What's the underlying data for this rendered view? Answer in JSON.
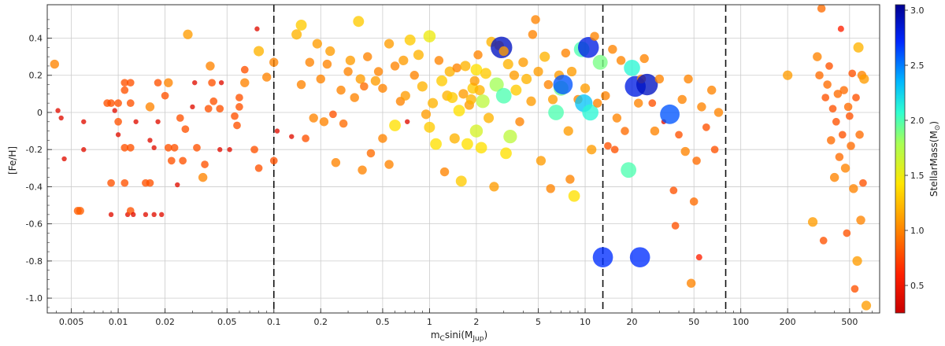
{
  "chart_data": {
    "type": "scatter",
    "title": "",
    "xlabel": "m_C sini(M_Jup)",
    "xlabel_main": "m",
    "xlabel_sub": "C",
    "xlabel_mid": "sini(M",
    "xlabel_sub2": "Jup",
    "xlabel_end": ")",
    "ylabel": "[Fe/H]",
    "xscale": "log",
    "xlim": [
      0.0035,
      780
    ],
    "ylim": [
      -1.08,
      0.58
    ],
    "grid": true,
    "x_ticks": [
      {
        "v": 0.005,
        "t": "0.005"
      },
      {
        "v": 0.01,
        "t": "0.01"
      },
      {
        "v": 0.02,
        "t": "0.02"
      },
      {
        "v": 0.05,
        "t": "0.05"
      },
      {
        "v": 0.1,
        "t": "0.1"
      },
      {
        "v": 0.2,
        "t": "0.2"
      },
      {
        "v": 0.5,
        "t": "0.5"
      },
      {
        "v": 1,
        "t": "1"
      },
      {
        "v": 2,
        "t": "2"
      },
      {
        "v": 5,
        "t": "5"
      },
      {
        "v": 10,
        "t": "10"
      },
      {
        "v": 20,
        "t": "20"
      },
      {
        "v": 50,
        "t": "50"
      },
      {
        "v": 100,
        "t": "100"
      },
      {
        "v": 200,
        "t": "200"
      },
      {
        "v": 500,
        "t": "500"
      }
    ],
    "y_ticks": [
      {
        "v": 0.4,
        "t": "0.4"
      },
      {
        "v": 0.2,
        "t": "0.2"
      },
      {
        "v": 0,
        "t": "0"
      },
      {
        "v": -0.2,
        "t": "-0.2"
      },
      {
        "v": -0.4,
        "t": "-0.4"
      },
      {
        "v": -0.6,
        "t": "-0.6"
      },
      {
        "v": -0.8,
        "t": "-0.8"
      },
      {
        "v": -1.0,
        "t": "-1.0"
      }
    ],
    "vlines": [
      0.1,
      13,
      80
    ],
    "colorbar": {
      "label": "StellarMass(M",
      "label_sym": "⊙",
      "label_end": ")",
      "range": [
        0.25,
        3.05
      ],
      "colormap": "jet",
      "ticks": [
        {
          "v": 0.5,
          "t": "0.5"
        },
        {
          "v": 1.0,
          "t": "1.0"
        },
        {
          "v": 1.5,
          "t": "1.5"
        },
        {
          "v": 2.0,
          "t": "2.0"
        },
        {
          "v": 2.5,
          "t": "2.5"
        },
        {
          "v": 3.0,
          "t": "3.0"
        }
      ]
    },
    "points_note": "each point: [x (M_Jup), [Fe/H], stellar mass (M_sun)]; marker size grows with stellar mass",
    "points": [
      [
        0.0039,
        0.26,
        1.0
      ],
      [
        0.0041,
        0.01,
        0.4
      ],
      [
        0.0043,
        -0.03,
        0.4
      ],
      [
        0.0045,
        -0.25,
        0.4
      ],
      [
        0.0055,
        -0.53,
        0.85
      ],
      [
        0.0057,
        -0.53,
        0.85
      ],
      [
        0.006,
        -0.05,
        0.4
      ],
      [
        0.006,
        -0.2,
        0.4
      ],
      [
        0.0085,
        0.05,
        0.8
      ],
      [
        0.009,
        0.05,
        0.8
      ],
      [
        0.009,
        -0.38,
        0.8
      ],
      [
        0.009,
        -0.55,
        0.4
      ],
      [
        0.0095,
        0.01,
        0.4
      ],
      [
        0.01,
        0.05,
        0.8
      ],
      [
        0.01,
        -0.05,
        0.8
      ],
      [
        0.01,
        -0.12,
        0.4
      ],
      [
        0.011,
        0.16,
        0.8
      ],
      [
        0.011,
        0.12,
        0.8
      ],
      [
        0.011,
        -0.19,
        0.8
      ],
      [
        0.011,
        -0.38,
        0.8
      ],
      [
        0.0115,
        -0.55,
        0.4
      ],
      [
        0.012,
        0.16,
        0.8
      ],
      [
        0.012,
        0.05,
        0.8
      ],
      [
        0.012,
        -0.19,
        0.8
      ],
      [
        0.012,
        -0.53,
        0.8
      ],
      [
        0.0125,
        -0.55,
        0.4
      ],
      [
        0.013,
        -0.05,
        0.4
      ],
      [
        0.015,
        -0.55,
        0.4
      ],
      [
        0.015,
        -0.38,
        0.8
      ],
      [
        0.016,
        0.03,
        1.0
      ],
      [
        0.016,
        -0.15,
        0.4
      ],
      [
        0.017,
        -0.19,
        0.4
      ],
      [
        0.017,
        -0.55,
        0.4
      ],
      [
        0.016,
        -0.38,
        0.8
      ],
      [
        0.018,
        0.16,
        0.8
      ],
      [
        0.018,
        -0.05,
        0.4
      ],
      [
        0.019,
        -0.55,
        0.4
      ],
      [
        0.02,
        0.09,
        0.8
      ],
      [
        0.021,
        0.16,
        1.0
      ],
      [
        0.021,
        -0.19,
        0.8
      ],
      [
        0.022,
        -0.26,
        0.8
      ],
      [
        0.023,
        -0.19,
        0.8
      ],
      [
        0.024,
        -0.39,
        0.4
      ],
      [
        0.025,
        -0.03,
        0.8
      ],
      [
        0.026,
        -0.26,
        0.8
      ],
      [
        0.027,
        -0.09,
        0.8
      ],
      [
        0.028,
        0.42,
        1.1
      ],
      [
        0.03,
        0.03,
        0.4
      ],
      [
        0.031,
        0.16,
        0.4
      ],
      [
        0.032,
        -0.19,
        0.8
      ],
      [
        0.035,
        -0.35,
        1.0
      ],
      [
        0.036,
        -0.28,
        0.8
      ],
      [
        0.038,
        0.02,
        0.8
      ],
      [
        0.039,
        0.25,
        1.0
      ],
      [
        0.04,
        0.16,
        0.8
      ],
      [
        0.041,
        0.06,
        0.8
      ],
      [
        0.045,
        0.02,
        0.8
      ],
      [
        0.045,
        -0.2,
        0.4
      ],
      [
        0.046,
        0.16,
        0.4
      ],
      [
        0.052,
        -0.2,
        0.4
      ],
      [
        0.056,
        -0.02,
        0.8
      ],
      [
        0.058,
        -0.07,
        0.8
      ],
      [
        0.06,
        0.03,
        0.8
      ],
      [
        0.06,
        0.08,
        0.8
      ],
      [
        0.065,
        0.23,
        0.8
      ],
      [
        0.065,
        0.16,
        1.0
      ],
      [
        0.075,
        -0.2,
        0.8
      ],
      [
        0.078,
        0.45,
        0.4
      ],
      [
        0.08,
        0.33,
        1.2
      ],
      [
        0.08,
        -0.3,
        0.8
      ],
      [
        0.09,
        0.19,
        1.0
      ],
      [
        0.1,
        0.27,
        1.0
      ],
      [
        0.1,
        -0.26,
        0.8
      ],
      [
        0.105,
        -0.1,
        0.4
      ],
      [
        0.13,
        -0.13,
        0.4
      ],
      [
        0.14,
        0.42,
        1.2
      ],
      [
        0.15,
        0.47,
        1.3
      ],
      [
        0.15,
        0.15,
        1.0
      ],
      [
        0.16,
        -0.14,
        0.8
      ],
      [
        0.17,
        0.27,
        1.0
      ],
      [
        0.18,
        -0.03,
        1.0
      ],
      [
        0.19,
        0.37,
        1.1
      ],
      [
        0.2,
        0.18,
        1.0
      ],
      [
        0.21,
        -0.05,
        1.0
      ],
      [
        0.22,
        0.26,
        1.0
      ],
      [
        0.23,
        0.33,
        1.1
      ],
      [
        0.24,
        -0.01,
        0.8
      ],
      [
        0.25,
        -0.27,
        1.0
      ],
      [
        0.27,
        0.12,
        1.0
      ],
      [
        0.28,
        -0.06,
        0.9
      ],
      [
        0.3,
        0.22,
        1.0
      ],
      [
        0.31,
        0.28,
        1.1
      ],
      [
        0.33,
        0.08,
        1.0
      ],
      [
        0.35,
        0.49,
        1.3
      ],
      [
        0.36,
        0.18,
        1.1
      ],
      [
        0.37,
        -0.31,
        1.0
      ],
      [
        0.38,
        0.14,
        0.9
      ],
      [
        0.4,
        0.3,
        1.0
      ],
      [
        0.42,
        -0.22,
        0.9
      ],
      [
        0.45,
        0.17,
        1.1
      ],
      [
        0.47,
        0.22,
        1.0
      ],
      [
        0.5,
        0.13,
        1.0
      ],
      [
        0.5,
        -0.14,
        1.0
      ],
      [
        0.55,
        0.37,
        1.1
      ],
      [
        0.55,
        -0.28,
        1.0
      ],
      [
        0.6,
        0.25,
        1.0
      ],
      [
        0.6,
        -0.07,
        1.4
      ],
      [
        0.65,
        0.06,
        1.0
      ],
      [
        0.68,
        0.28,
        1.1
      ],
      [
        0.7,
        0.09,
        1.1
      ],
      [
        0.72,
        -0.05,
        0.4
      ],
      [
        0.75,
        0.39,
        1.3
      ],
      [
        0.8,
        0.2,
        1.0
      ],
      [
        0.85,
        0.31,
        1.2
      ],
      [
        0.9,
        0.14,
        1.2
      ],
      [
        0.95,
        -0.01,
        1.1
      ],
      [
        1.0,
        -0.08,
        1.3
      ],
      [
        1.0,
        0.41,
        1.5
      ],
      [
        1.05,
        0.05,
        1.2
      ],
      [
        1.1,
        -0.17,
        1.4
      ],
      [
        1.15,
        0.28,
        1.0
      ],
      [
        1.2,
        0.17,
        1.3
      ],
      [
        1.25,
        -0.32,
        1.0
      ],
      [
        1.3,
        0.09,
        1.2
      ],
      [
        1.35,
        0.22,
        1.2
      ],
      [
        1.4,
        0.08,
        1.3
      ],
      [
        1.45,
        -0.14,
        1.2
      ],
      [
        1.5,
        0.24,
        1.0
      ],
      [
        1.55,
        0.01,
        1.4
      ],
      [
        1.6,
        -0.37,
        1.3
      ],
      [
        1.65,
        0.1,
        1.1
      ],
      [
        1.7,
        0.25,
        1.2
      ],
      [
        1.75,
        -0.17,
        1.4
      ],
      [
        1.8,
        0.04,
        1.1
      ],
      [
        1.85,
        0.07,
        1.2
      ],
      [
        1.9,
        0.13,
        1.3
      ],
      [
        1.95,
        0.17,
        1.1
      ],
      [
        2.0,
        0.23,
        1.4
      ],
      [
        2.0,
        -0.1,
        1.6
      ],
      [
        2.05,
        0.31,
        1.0
      ],
      [
        2.1,
        0.12,
        1.2
      ],
      [
        2.15,
        -0.19,
        1.4
      ],
      [
        2.2,
        0.06,
        1.7
      ],
      [
        2.3,
        0.21,
        1.3
      ],
      [
        2.4,
        -0.03,
        1.2
      ],
      [
        2.5,
        0.38,
        1.2
      ],
      [
        2.6,
        -0.4,
        1.1
      ],
      [
        2.7,
        0.15,
        1.8
      ],
      [
        2.8,
        0.36,
        1.1
      ],
      [
        2.9,
        0.35,
        2.9
      ],
      [
        3.0,
        0.33,
        1.1
      ],
      [
        3.0,
        0.09,
        2.0
      ],
      [
        3.1,
        -0.22,
        1.4
      ],
      [
        3.2,
        0.26,
        1.2
      ],
      [
        3.3,
        -0.13,
        1.7
      ],
      [
        3.5,
        0.2,
        1.1
      ],
      [
        3.6,
        0.12,
        1.3
      ],
      [
        3.8,
        -0.05,
        1.0
      ],
      [
        4.0,
        0.27,
        1.1
      ],
      [
        4.2,
        0.18,
        1.2
      ],
      [
        4.5,
        0.06,
        1.1
      ],
      [
        4.6,
        0.42,
        1.0
      ],
      [
        4.8,
        0.5,
        1.0
      ],
      [
        5.0,
        0.22,
        1.1
      ],
      [
        5.2,
        -0.26,
        1.1
      ],
      [
        5.5,
        0.3,
        1.2
      ],
      [
        5.8,
        0.15,
        1.0
      ],
      [
        6.0,
        -0.41,
        1.0
      ],
      [
        6.2,
        0.07,
        1.1
      ],
      [
        6.5,
        0.0,
        2.0
      ],
      [
        6.8,
        0.2,
        1.1
      ],
      [
        7.0,
        0.13,
        1.9
      ],
      [
        7.2,
        0.15,
        2.6
      ],
      [
        7.5,
        0.32,
        1.0
      ],
      [
        7.8,
        -0.1,
        1.1
      ],
      [
        8.0,
        -0.36,
        1.0
      ],
      [
        8.2,
        0.22,
        1.1
      ],
      [
        8.5,
        -0.45,
        1.4
      ],
      [
        9.0,
        0.07,
        1.0
      ],
      [
        9.5,
        0.34,
        2.0
      ],
      [
        9.8,
        0.05,
        2.3
      ],
      [
        10.0,
        0.13,
        1.1
      ],
      [
        10.5,
        0.35,
        2.8
      ],
      [
        10.8,
        0.0,
        2.1
      ],
      [
        11.0,
        -0.2,
        1.1
      ],
      [
        11.5,
        0.41,
        1.0
      ],
      [
        12.0,
        0.05,
        1.0
      ],
      [
        12.5,
        0.27,
        1.9
      ],
      [
        13.0,
        -0.78,
        2.7
      ],
      [
        13.5,
        0.09,
        1.0
      ],
      [
        14.0,
        -0.18,
        0.8
      ],
      [
        15.0,
        0.34,
        1.0
      ],
      [
        15.5,
        -0.2,
        0.8
      ],
      [
        16.0,
        -0.03,
        1.0
      ],
      [
        17.0,
        0.28,
        1.0
      ],
      [
        18.0,
        -0.1,
        0.9
      ],
      [
        19.0,
        -0.31,
        2.0
      ],
      [
        20.0,
        0.24,
        2.1
      ],
      [
        21.0,
        0.14,
        2.8
      ],
      [
        22.0,
        0.05,
        1.0
      ],
      [
        22.5,
        -0.78,
        2.7
      ],
      [
        23.0,
        0.18,
        1.0
      ],
      [
        24.0,
        0.29,
        1.0
      ],
      [
        25.0,
        0.15,
        2.9
      ],
      [
        27.0,
        0.05,
        0.8
      ],
      [
        28.0,
        -0.1,
        1.0
      ],
      [
        30.0,
        0.18,
        1.0
      ],
      [
        32.0,
        -0.05,
        0.4
      ],
      [
        35.0,
        -0.01,
        2.6
      ],
      [
        37.0,
        -0.42,
        0.8
      ],
      [
        38.0,
        -0.61,
        0.8
      ],
      [
        40.0,
        -0.12,
        0.8
      ],
      [
        42.0,
        0.07,
        1.0
      ],
      [
        44.0,
        -0.21,
        1.0
      ],
      [
        46.0,
        0.18,
        1.0
      ],
      [
        48.0,
        -0.92,
        1.0
      ],
      [
        50.0,
        -0.48,
        0.9
      ],
      [
        52.0,
        -0.26,
        0.9
      ],
      [
        54.0,
        -0.78,
        0.6
      ],
      [
        56.0,
        0.03,
        1.0
      ],
      [
        60.0,
        -0.08,
        0.8
      ],
      [
        65.0,
        0.12,
        1.0
      ],
      [
        68.0,
        -0.2,
        0.8
      ],
      [
        72.0,
        0.0,
        1.0
      ],
      [
        200.0,
        0.2,
        1.1
      ],
      [
        290.0,
        -0.59,
        1.1
      ],
      [
        310.0,
        0.3,
        1.0
      ],
      [
        320.0,
        0.2,
        0.9
      ],
      [
        330.0,
        0.56,
        0.9
      ],
      [
        340.0,
        -0.69,
        0.8
      ],
      [
        350.0,
        0.08,
        0.8
      ],
      [
        360.0,
        0.15,
        0.9
      ],
      [
        370.0,
        0.25,
        0.8
      ],
      [
        380.0,
        -0.15,
        0.9
      ],
      [
        390.0,
        0.02,
        0.8
      ],
      [
        400.0,
        -0.35,
        1.0
      ],
      [
        410.0,
        -0.05,
        0.8
      ],
      [
        420.0,
        0.1,
        0.9
      ],
      [
        430.0,
        -0.24,
        0.9
      ],
      [
        440.0,
        0.45,
        0.6
      ],
      [
        450.0,
        -0.12,
        0.8
      ],
      [
        460.0,
        0.12,
        0.9
      ],
      [
        470.0,
        -0.3,
        1.0
      ],
      [
        480.0,
        -0.65,
        0.8
      ],
      [
        490.0,
        0.03,
        0.9
      ],
      [
        500.0,
        -0.02,
        0.8
      ],
      [
        510.0,
        -0.18,
        0.9
      ],
      [
        520.0,
        0.21,
        0.8
      ],
      [
        530.0,
        -0.41,
        1.0
      ],
      [
        540.0,
        -0.95,
        0.8
      ],
      [
        550.0,
        0.08,
        0.8
      ],
      [
        560.0,
        -0.8,
        1.1
      ],
      [
        570.0,
        0.35,
        1.2
      ],
      [
        580.0,
        -0.12,
        0.9
      ],
      [
        590.0,
        -0.58,
        1.0
      ],
      [
        600.0,
        0.2,
        1.0
      ],
      [
        610.0,
        -0.38,
        0.8
      ],
      [
        620.0,
        0.18,
        1.1
      ],
      [
        640.0,
        -1.04,
        1.1
      ]
    ]
  }
}
